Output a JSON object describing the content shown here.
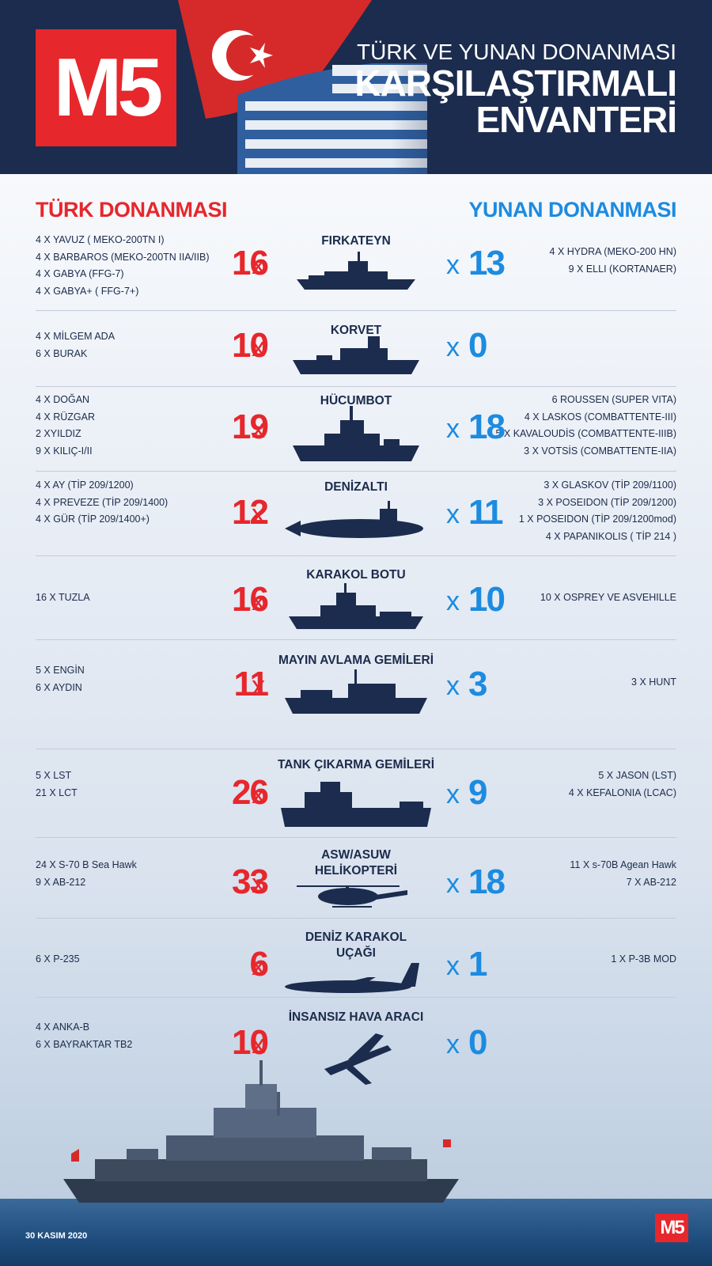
{
  "header": {
    "logo": "M5",
    "subtitle": "TÜRK VE YUNAN DONANMASI",
    "title_line1": "KARŞILAŞTIRMALI",
    "title_line2": "ENVANTERİ"
  },
  "columns": {
    "turkish": "TÜRK DONANMASI",
    "greek": "YUNAN DONANMASI"
  },
  "x_symbol": "x",
  "categories": [
    {
      "title": "FIRKATEYN",
      "tr_count": "16",
      "gr_count": "13",
      "tr_items": [
        "4 X YAVUZ ( MEKO-200TN I)",
        "4 X BARBAROS (MEKO-200TN IIA/IIB)",
        "4 X GABYA  (FFG-7)",
        "4 X GABYA+ ( FFG-7+)"
      ],
      "gr_items": [
        "4 X HYDRA (MEKO-200 HN)",
        "9 X  ELLI (KORTANAER)"
      ],
      "icon": "frigate-icon"
    },
    {
      "title": "KORVET",
      "tr_count": "10",
      "gr_count": "0",
      "tr_items": [
        "4 X MİLGEM ADA",
        "6 X BURAK"
      ],
      "gr_items": [],
      "icon": "corvette-icon"
    },
    {
      "title": "HÜCUMBOT",
      "tr_count": "19",
      "gr_count": "18",
      "tr_items": [
        "4 X DOĞAN",
        "4 X RÜZGAR",
        "2 XYILDIZ",
        "9 X KILIÇ-I/II"
      ],
      "gr_items": [
        "6  ROUSSEN (SUPER VITA)",
        "4 X  LASKOS (COMBATTENTE-III)",
        "5 X KAVALOUDİS (COMBATTENTE-IIIB)",
        "3 X VOTSİS (COMBATTENTE-IIA)"
      ],
      "icon": "attack-boat-icon"
    },
    {
      "title": "DENİZALTI",
      "tr_count": "12",
      "gr_count": "11",
      "tr_items": [
        "4 X AY (TİP 209/1200)",
        "4 X PREVEZE (TİP 209/1400)",
        "4 X GÜR (TİP 209/1400+)"
      ],
      "gr_items": [
        "3 X GLASKOV (TİP 209/1100)",
        "3 X POSEIDON (TİP 209/1200)",
        "1 X POSEIDON  (TİP 209/1200mod)",
        "4 X PAPANIKOLIS ( TİP 214 )"
      ],
      "icon": "submarine-icon"
    },
    {
      "title": "KARAKOL BOTU",
      "tr_count": "16",
      "gr_count": "10",
      "tr_items": [
        "16 X TUZLA"
      ],
      "gr_items": [
        "10 X OSPREY VE ASVEHILLE"
      ],
      "icon": "patrol-boat-icon"
    },
    {
      "title": "MAYIN  AVLAMA GEMİLERİ",
      "tr_count": "11",
      "gr_count": "3",
      "tr_items": [
        "5 X ENGİN",
        "6 X AYDIN"
      ],
      "gr_items": [
        "3 X HUNT"
      ],
      "icon": "minehunter-icon"
    },
    {
      "title": "TANK ÇIKARMA GEMİLERİ",
      "tr_count": "26",
      "gr_count": "9",
      "tr_items": [
        "5 X LST",
        "21 X LCT"
      ],
      "gr_items": [
        "5 X JASON (LST)",
        "4 X KEFALONIA (LCAC)"
      ],
      "icon": "landing-ship-icon"
    },
    {
      "title": "ASW/ASUW\nHELİKOPTERİ",
      "tr_count": "33",
      "gr_count": "18",
      "tr_items": [
        "24 X S-70 B Sea Hawk",
        "9 X AB-212"
      ],
      "gr_items": [
        "11 X s-70B Agean Hawk",
        "7 X AB-212"
      ],
      "icon": "helicopter-icon"
    },
    {
      "title": "DENİZ KARAKOL\nUÇAĞI",
      "tr_count": "6",
      "gr_count": "1",
      "tr_items": [
        "6 X P-235"
      ],
      "gr_items": [
        "1 X P-3B MOD"
      ],
      "icon": "patrol-aircraft-icon"
    },
    {
      "title": "İNSANSIZ HAVA ARACI",
      "tr_count": "10",
      "gr_count": "0",
      "tr_items": [
        "4 X ANKA-B",
        "6 X BAYRAKTAR TB2"
      ],
      "gr_items": [],
      "icon": "drone-icon"
    }
  ],
  "footer": {
    "date": "30 KASIM 2020",
    "logo": "M5"
  }
}
